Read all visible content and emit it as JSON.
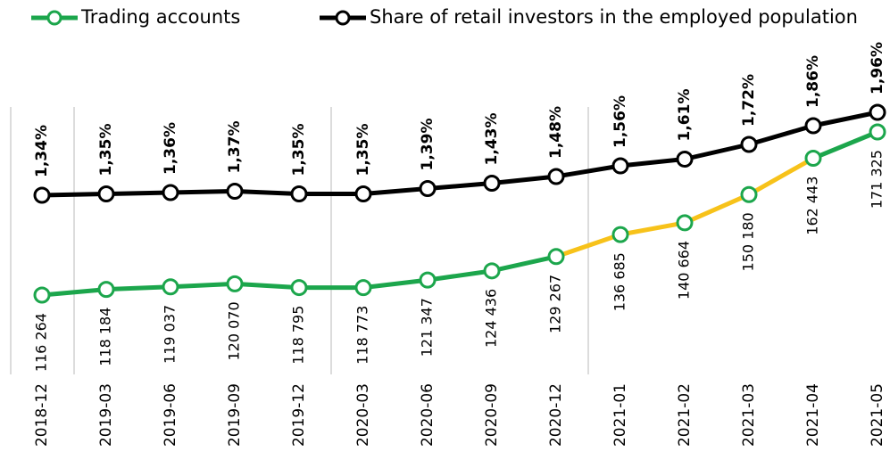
{
  "chart_data": {
    "type": "line",
    "categories": [
      "2018-12",
      "2019-03",
      "2019-06",
      "2019-09",
      "2019-12",
      "2020-03",
      "2020-06",
      "2020-09",
      "2020-12",
      "2021-01",
      "2021-02",
      "2021-03",
      "2021-04",
      "2021-05"
    ],
    "series": [
      {
        "name": "Trading accounts",
        "color": "#1ca64c",
        "segment_colors": [
          "#1ca64c",
          "#1ca64c",
          "#1ca64c",
          "#1ca64c",
          "#1ca64c",
          "#1ca64c",
          "#1ca64c",
          "#1ca64c",
          "#f7c21a",
          "#f7c21a",
          "#f7c21a",
          "#f7c21a",
          "#1ca64c"
        ],
        "values": [
          116264,
          118184,
          119037,
          120070,
          118795,
          118773,
          121347,
          124436,
          129267,
          136685,
          140664,
          150180,
          162443,
          171325
        ],
        "value_labels": [
          "116 264",
          "118 184",
          "119 037",
          "120 070",
          "118 795",
          "118 773",
          "121 347",
          "124 436",
          "129 267",
          "136 685",
          "140 664",
          "150 180",
          "162 443",
          "171 325"
        ]
      },
      {
        "name": "Share of retail investors in the employed population",
        "color": "#000000",
        "axis": "y2",
        "values": [
          1.34,
          1.35,
          1.36,
          1.37,
          1.35,
          1.35,
          1.39,
          1.43,
          1.48,
          1.56,
          1.61,
          1.72,
          1.86,
          1.96
        ],
        "value_labels": [
          "1,34%",
          "1,35%",
          "1,36%",
          "1,37%",
          "1,35%",
          "1,35%",
          "1,39%",
          "1,43%",
          "1,48%",
          "1,56%",
          "1,61%",
          "1,72%",
          "1,86%",
          "1,96%"
        ]
      }
    ]
  }
}
